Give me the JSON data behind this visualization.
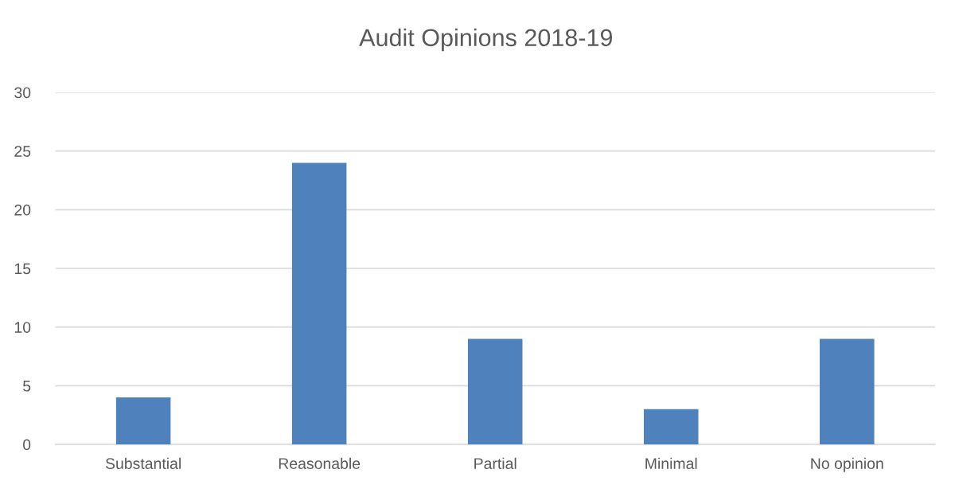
{
  "chart_data": {
    "type": "bar",
    "title": "Audit Opinions 2018-19",
    "categories": [
      "Substantial",
      "Reasonable",
      "Partial",
      "Minimal",
      "No opinion"
    ],
    "values": [
      4,
      24,
      9,
      3,
      9
    ],
    "color": "#4f81bd",
    "ylim": [
      0,
      30
    ],
    "yticks": [
      0,
      5,
      10,
      15,
      20,
      25,
      30
    ],
    "grid": "y",
    "legend": false
  }
}
